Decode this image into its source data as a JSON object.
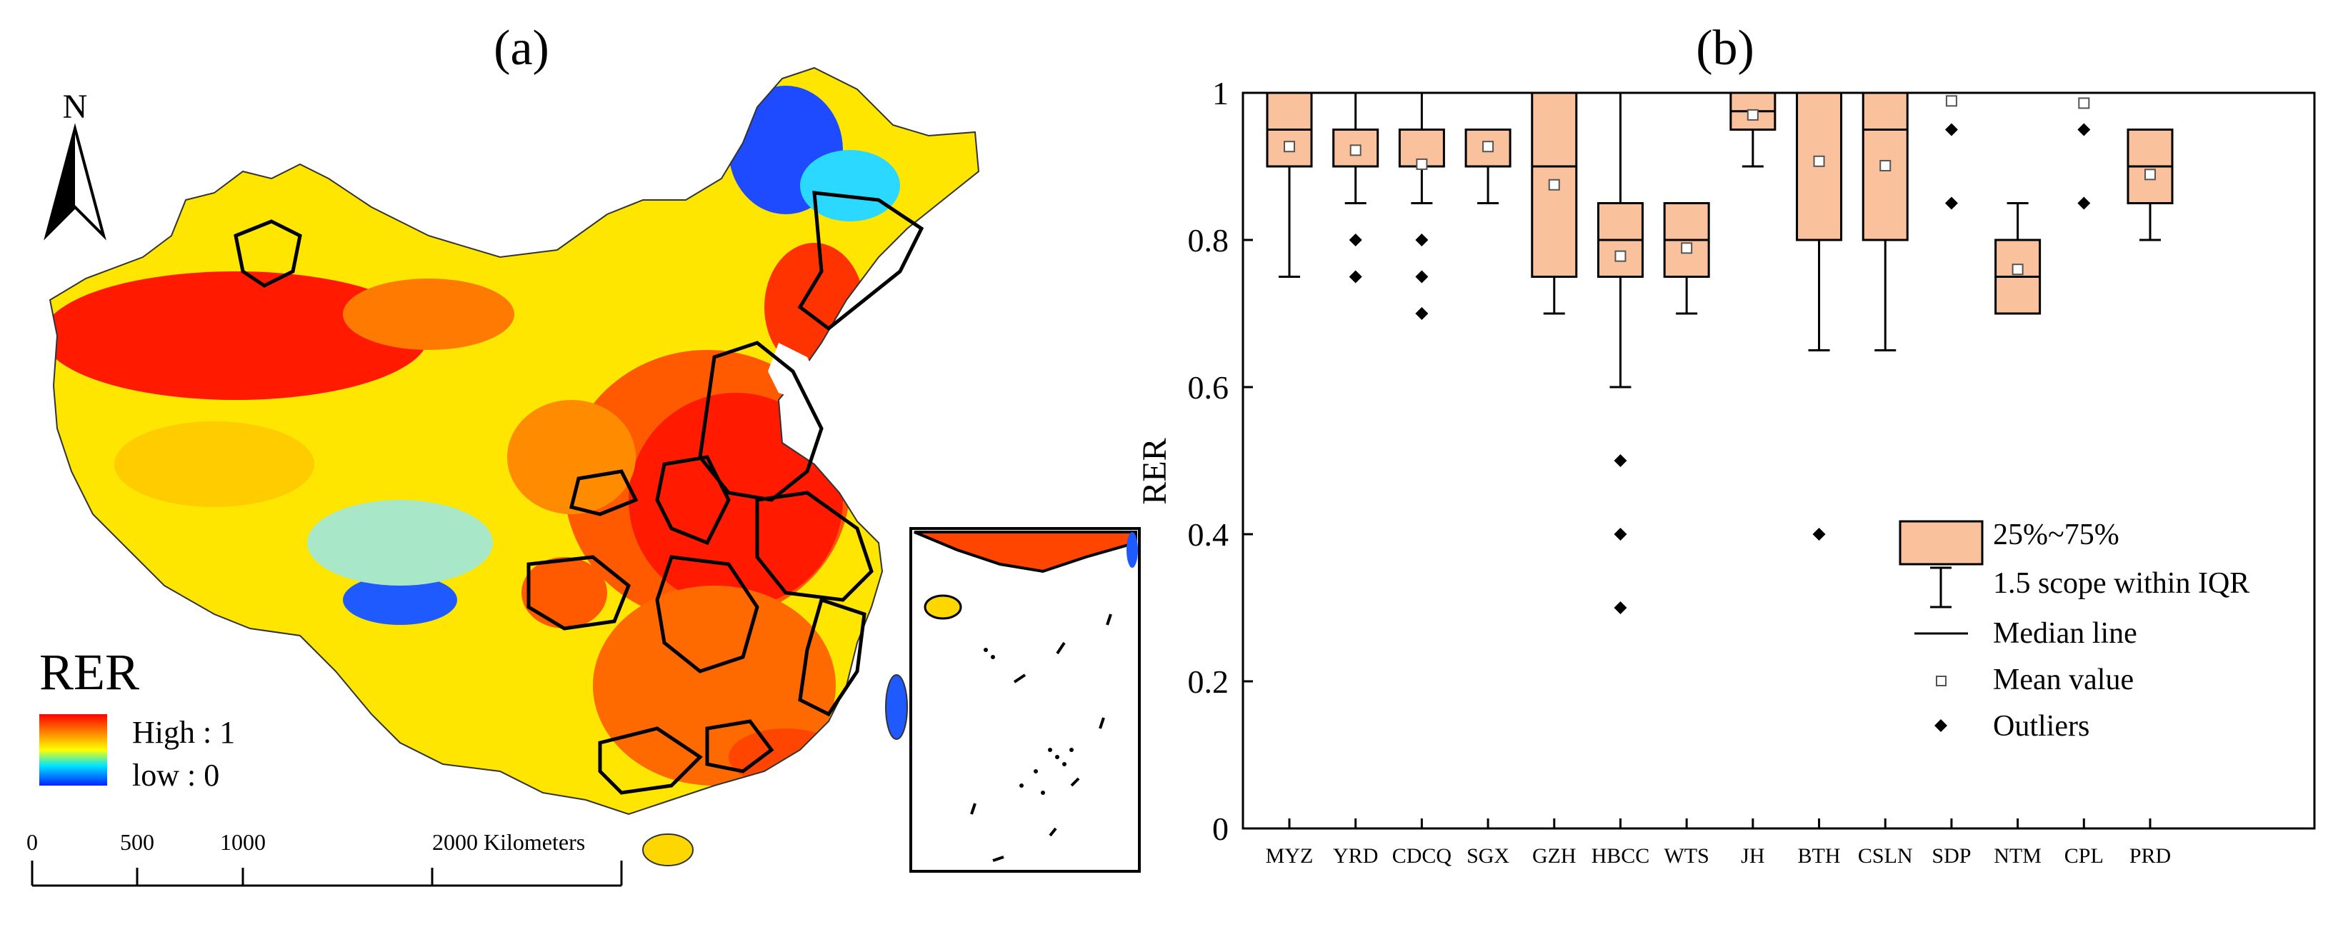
{
  "panel_a": {
    "label": "(a)",
    "north": "N",
    "legend": {
      "title": "RER",
      "high": "High : 1",
      "low": "low : 0",
      "colors": [
        "#ff0000",
        "#ff7f00",
        "#ffff00",
        "#00ffff",
        "#0000ff"
      ]
    },
    "scale": {
      "ticks": [
        "0",
        "500",
        "1000",
        "2000 Kilometers"
      ]
    }
  },
  "panel_b": {
    "label": "(b)",
    "legend": {
      "box": "25%~75%",
      "whisker": "1.5 scope within IQR",
      "median": "Median line",
      "mean": "Mean value",
      "outliers": "Outliers"
    }
  },
  "chart_data": {
    "type": "box",
    "title": "(b)",
    "xlabel": "",
    "ylabel": "RER",
    "ylim": [
      0,
      1
    ],
    "yticks": [
      "0",
      "0.2",
      "0.4",
      "0.6",
      "0.8",
      "1"
    ],
    "box_color": "#f9c29c",
    "categories": [
      "MYZ",
      "YRD",
      "CDCQ",
      "SGX",
      "GZH",
      "HBCC",
      "WTS",
      "JH",
      "BTH",
      "CSLN",
      "SDP",
      "NTM",
      "CPL",
      "PRD"
    ],
    "boxes": [
      {
        "q1": 0.9,
        "median": 0.95,
        "q3": 1.0,
        "whisker_low": 0.75,
        "whisker_high": 1.0,
        "mean": 0.927,
        "outliers": []
      },
      {
        "q1": 0.9,
        "median": 0.9,
        "q3": 0.95,
        "whisker_low": 0.85,
        "whisker_high": 1.0,
        "mean": 0.922,
        "outliers": [
          0.8,
          0.75
        ]
      },
      {
        "q1": 0.9,
        "median": 0.9,
        "q3": 0.95,
        "whisker_low": 0.85,
        "whisker_high": 1.0,
        "mean": 0.903,
        "outliers": [
          0.8,
          0.75,
          0.7
        ]
      },
      {
        "q1": 0.9,
        "median": 0.9,
        "q3": 0.95,
        "whisker_low": 0.85,
        "whisker_high": 0.95,
        "mean": 0.927,
        "outliers": []
      },
      {
        "q1": 0.75,
        "median": 0.9,
        "q3": 1.0,
        "whisker_low": 0.7,
        "whisker_high": 1.0,
        "mean": 0.875,
        "outliers": []
      },
      {
        "q1": 0.75,
        "median": 0.8,
        "q3": 0.85,
        "whisker_low": 0.6,
        "whisker_high": 1.0,
        "mean": 0.778,
        "outliers": [
          0.5,
          0.4,
          0.3
        ]
      },
      {
        "q1": 0.75,
        "median": 0.8,
        "q3": 0.85,
        "whisker_low": 0.7,
        "whisker_high": 0.85,
        "mean": 0.789,
        "outliers": []
      },
      {
        "q1": 0.95,
        "median": 0.975,
        "q3": 1.0,
        "whisker_low": 0.9,
        "whisker_high": 1.0,
        "mean": 0.97,
        "outliers": []
      },
      {
        "q1": 0.8,
        "median": 1.0,
        "q3": 1.0,
        "whisker_low": 0.65,
        "whisker_high": 1.0,
        "mean": 0.907,
        "outliers": [
          0.4
        ]
      },
      {
        "q1": 0.8,
        "median": 0.95,
        "q3": 1.0,
        "whisker_low": 0.65,
        "whisker_high": 1.0,
        "mean": 0.901,
        "outliers": []
      },
      {
        "q1": 1.0,
        "median": 1.0,
        "q3": 1.0,
        "whisker_low": 1.0,
        "whisker_high": 1.0,
        "mean": 0.989,
        "outliers": [
          0.95,
          0.85
        ]
      },
      {
        "q1": 0.7,
        "median": 0.75,
        "q3": 0.8,
        "whisker_low": 0.7,
        "whisker_high": 0.85,
        "mean": 0.76,
        "outliers": []
      },
      {
        "q1": 1.0,
        "median": 1.0,
        "q3": 1.0,
        "whisker_low": 1.0,
        "whisker_high": 1.0,
        "mean": 0.986,
        "outliers": [
          0.95,
          0.85
        ]
      },
      {
        "q1": 0.85,
        "median": 0.9,
        "q3": 0.95,
        "whisker_low": 0.8,
        "whisker_high": 0.95,
        "mean": 0.889,
        "outliers": []
      }
    ]
  }
}
